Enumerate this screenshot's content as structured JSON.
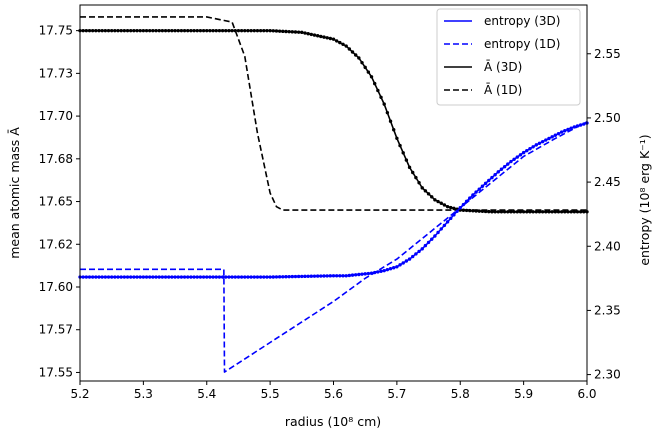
{
  "chart_data": {
    "type": "line",
    "xlabel": "radius (10⁸ cm)",
    "ylabel_left": "mean atomic mass Ā",
    "ylabel_right": "entropy (10⁸ erg K⁻¹)",
    "xlim": [
      5.2,
      6.0
    ],
    "ylim_left": [
      17.545,
      17.765
    ],
    "ylim_right": [
      2.295,
      2.588
    ],
    "x_ticks": [
      5.2,
      5.3,
      5.4,
      5.5,
      5.6,
      5.7,
      5.8,
      5.9,
      6.0
    ],
    "x_tick_labels": [
      "5.2",
      "5.3",
      "5.4",
      "5.5",
      "5.6",
      "5.7",
      "5.8",
      "5.9",
      "6.0"
    ],
    "y_left_ticks": [
      17.55,
      17.575,
      17.6,
      17.625,
      17.65,
      17.675,
      17.7,
      17.725,
      17.75
    ],
    "y_left_tick_labels": [
      "17.55",
      "17.57",
      "17.60",
      "17.62",
      "17.65",
      "17.68",
      "17.70",
      "17.73",
      "17.75"
    ],
    "y_right_ticks": [
      2.3,
      2.35,
      2.4,
      2.45,
      2.5,
      2.55
    ],
    "y_right_tick_labels": [
      "2.30",
      "2.35",
      "2.40",
      "2.45",
      "2.50",
      "2.55"
    ],
    "legend_position": "top-right",
    "series": [
      {
        "name": "entropy (3D)",
        "axis": "right",
        "color": "#0000ff",
        "dash": "solid",
        "markers": true,
        "x": [
          5.2,
          5.3,
          5.4,
          5.5,
          5.6,
          5.62,
          5.64,
          5.66,
          5.68,
          5.7,
          5.72,
          5.74,
          5.76,
          5.78,
          5.8,
          5.82,
          5.84,
          5.86,
          5.88,
          5.9,
          5.92,
          5.94,
          5.96,
          5.98,
          6.0
        ],
        "y": [
          2.376,
          2.376,
          2.376,
          2.376,
          2.377,
          2.377,
          2.378,
          2.379,
          2.381,
          2.384,
          2.39,
          2.398,
          2.408,
          2.419,
          2.43,
          2.44,
          2.449,
          2.458,
          2.466,
          2.473,
          2.479,
          2.484,
          2.489,
          2.493,
          2.496
        ]
      },
      {
        "name": "entropy (1D)",
        "axis": "right",
        "color": "#0000ff",
        "dash": "dashed",
        "markers": false,
        "x": [
          5.2,
          5.427,
          5.427,
          5.428,
          5.45,
          5.5,
          5.55,
          5.6,
          5.65,
          5.7,
          5.75,
          5.8,
          5.85,
          5.9,
          5.95,
          6.0
        ],
        "y": [
          2.382,
          2.382,
          2.38,
          2.302,
          2.309,
          2.325,
          2.341,
          2.357,
          2.375,
          2.39,
          2.41,
          2.43,
          2.45,
          2.47,
          2.484,
          2.497
        ]
      },
      {
        "name": "Ā (3D)",
        "axis": "left",
        "color": "#000000",
        "dash": "solid",
        "markers": true,
        "x": [
          5.2,
          5.3,
          5.4,
          5.5,
          5.55,
          5.6,
          5.62,
          5.64,
          5.66,
          5.68,
          5.7,
          5.72,
          5.74,
          5.76,
          5.78,
          5.8,
          5.85,
          5.9,
          5.95,
          6.0
        ],
        "y": [
          17.75,
          17.75,
          17.75,
          17.75,
          17.749,
          17.745,
          17.741,
          17.734,
          17.723,
          17.707,
          17.687,
          17.67,
          17.658,
          17.651,
          17.647,
          17.645,
          17.644,
          17.644,
          17.644,
          17.644
        ]
      },
      {
        "name": "Ā (1D)",
        "axis": "left",
        "color": "#000000",
        "dash": "dashed",
        "markers": false,
        "x": [
          5.2,
          5.4,
          5.44,
          5.46,
          5.48,
          5.5,
          5.51,
          5.52,
          5.54,
          5.6,
          5.7,
          5.8,
          5.9,
          6.0
        ],
        "y": [
          17.758,
          17.758,
          17.755,
          17.735,
          17.69,
          17.655,
          17.647,
          17.645,
          17.645,
          17.645,
          17.645,
          17.645,
          17.645,
          17.645
        ]
      }
    ]
  }
}
